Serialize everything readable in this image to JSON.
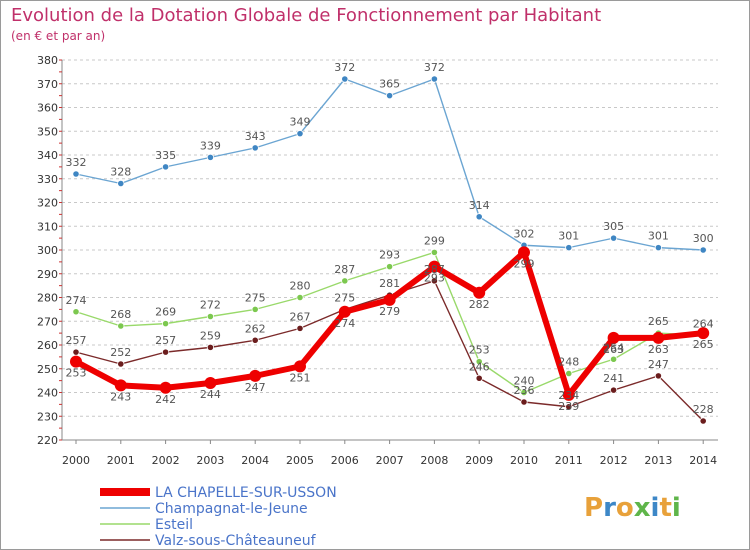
{
  "chart_data": {
    "type": "line",
    "title": "Evolution de la Dotation Globale de Fonctionnement par Habitant",
    "subtitle": "(en € et par an)",
    "xlabel": "",
    "ylabel": "",
    "ylim": [
      220,
      380
    ],
    "yticks": [
      220,
      230,
      240,
      250,
      260,
      270,
      280,
      290,
      300,
      310,
      320,
      330,
      340,
      350,
      360,
      370,
      380
    ],
    "categories": [
      "2000",
      "2001",
      "2002",
      "2003",
      "2004",
      "2005",
      "2006",
      "2007",
      "2008",
      "2009",
      "2010",
      "2011",
      "2012",
      "2013",
      "2014"
    ],
    "grid": "horizontal dashed",
    "legend_position": "bottom-left",
    "series": [
      {
        "name": "Champagnat-le-Jeune",
        "color": "#6ba5d2",
        "point_color": "#3f86c3",
        "values": [
          332,
          328,
          335,
          339,
          343,
          349,
          372,
          365,
          372,
          314,
          302,
          301,
          305,
          301,
          300
        ]
      },
      {
        "name": "Esteil",
        "color": "#99d96a",
        "point_color": "#7cc84f",
        "values": [
          274,
          268,
          269,
          272,
          275,
          280,
          287,
          293,
          299,
          253,
          240,
          248,
          254,
          265,
          264
        ]
      },
      {
        "name": "Valz-sous-Châteauneuf",
        "color": "#7b2a2a",
        "point_color": "#6b1d1d",
        "values": [
          257,
          252,
          257,
          259,
          262,
          267,
          275,
          281,
          287,
          246,
          236,
          234,
          241,
          247,
          228
        ]
      },
      {
        "name": "LA CHAPELLE-SUR-USSON",
        "color": "#ee0000",
        "point_color": "#ee0000",
        "values": [
          253,
          243,
          242,
          244,
          247,
          251,
          274,
          279,
          293,
          282,
          299,
          239,
          263,
          263,
          265
        ]
      }
    ]
  },
  "logo": {
    "text": "Proxiti"
  }
}
